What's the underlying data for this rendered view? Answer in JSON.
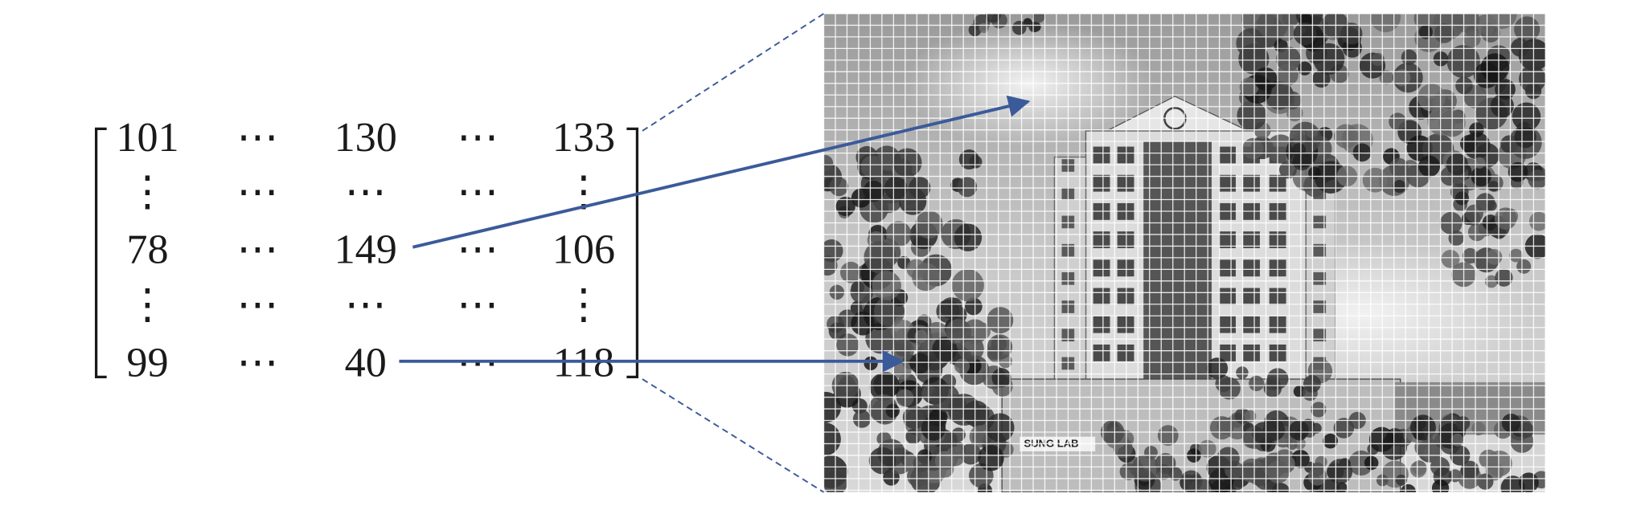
{
  "matrix": {
    "rows": [
      [
        "101",
        "⋯",
        "130",
        "⋯",
        "133"
      ],
      [
        "⋮",
        "⋯",
        "⋯",
        "⋯",
        "⋮"
      ],
      [
        "78",
        "⋯",
        "149",
        "⋯",
        "106"
      ],
      [
        "⋮",
        "⋯",
        "⋯",
        "⋯",
        "⋮"
      ],
      [
        "99",
        "⋯",
        "40",
        "⋯",
        "118"
      ]
    ]
  },
  "image": {
    "sign": "SUNG LAB"
  }
}
